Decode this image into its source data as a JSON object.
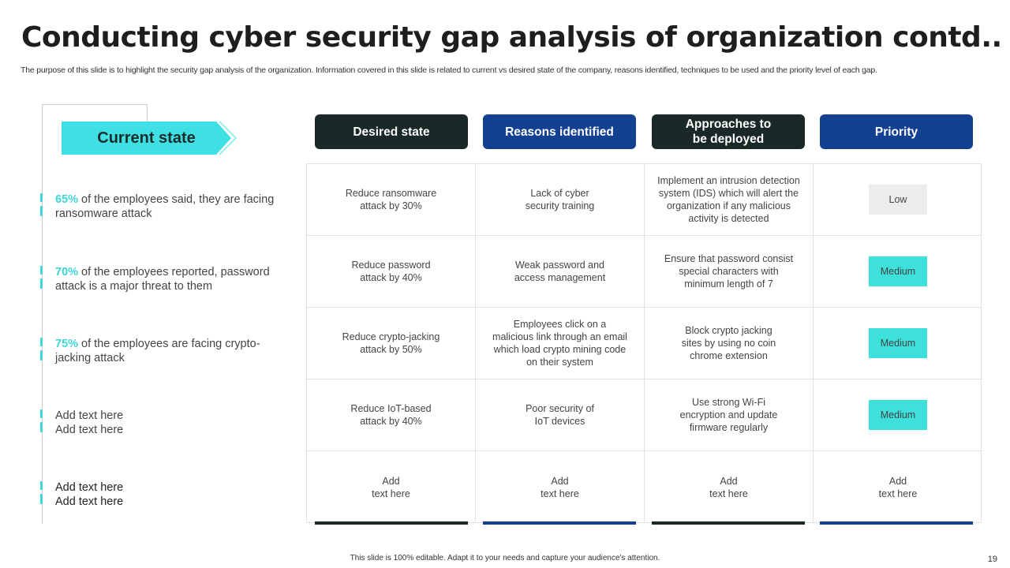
{
  "slide": {
    "title": "Conducting cyber security gap analysis of organization contd..",
    "subtitle": "The purpose of this slide is to highlight the security gap analysis of the organization. Information covered in this slide is related to current vs  desired state of the company, reasons identified, techniques to be used and the priority level of each gap.",
    "footer": "This slide is 100% editable.  Adapt it to your needs and capture your audience's attention.",
    "page_number": "19"
  },
  "current_state": {
    "label": "Current state",
    "items": [
      {
        "pct": "65%",
        "text": " of the employees said, they are facing ransomware attack"
      },
      {
        "pct": "70%",
        "text": " of the employees reported, password attack is a major threat to them"
      },
      {
        "pct": "75%",
        "text": " of the employees are facing crypto-jacking attack"
      },
      {
        "pct": "",
        "line1": "Add text here",
        "line2": "Add text here"
      },
      {
        "pct": "",
        "line1": "Add text here",
        "line2": "Add text here"
      }
    ]
  },
  "headers": {
    "desired": "Desired state",
    "reasons": "Reasons identified",
    "approaches_line1": "Approaches to",
    "approaches_line2": "be deployed",
    "priority": "Priority"
  },
  "rows": [
    {
      "desired": [
        "Reduce ransomware",
        "attack by 30%"
      ],
      "reasons": [
        "Lack of cyber",
        "security training"
      ],
      "approaches": [
        "Implement  an intrusion detection",
        "system (IDS) which will alert the",
        "organization  if any malicious",
        "activity is detected"
      ],
      "priority": "Low"
    },
    {
      "desired": [
        "Reduce password",
        "attack by 40%"
      ],
      "reasons": [
        "Weak password and",
        "access management"
      ],
      "approaches": [
        "Ensure that password consist",
        "special characters with",
        "minimum length of 7"
      ],
      "priority": "Medium"
    },
    {
      "desired": [
        "Reduce crypto-jacking",
        "attack by 50%"
      ],
      "reasons": [
        "Employees click on a",
        "malicious link through an email",
        "which load crypto mining code",
        "on their system"
      ],
      "approaches": [
        "Block crypto jacking",
        "sites by using no coin",
        "chrome extension"
      ],
      "priority": "Medium"
    },
    {
      "desired": [
        "Reduce IoT-based",
        "attack by 40%"
      ],
      "reasons": [
        "Poor security of",
        "IoT devices"
      ],
      "approaches": [
        "Use strong Wi-Fi",
        "encryption and update",
        "firmware  regularly"
      ],
      "priority": "Medium"
    },
    {
      "desired": [
        "Add",
        "text here"
      ],
      "reasons": [
        "Add",
        "text here"
      ],
      "approaches": [
        "Add",
        "text here"
      ],
      "priority_text": [
        "Add",
        "text here"
      ]
    }
  ],
  "colors": {
    "accent": "#3ed6d8",
    "header_dark": "#1a2928",
    "header_blue": "#134090",
    "badge_low": "#ececec",
    "badge_medium": "#3ee0dc"
  }
}
